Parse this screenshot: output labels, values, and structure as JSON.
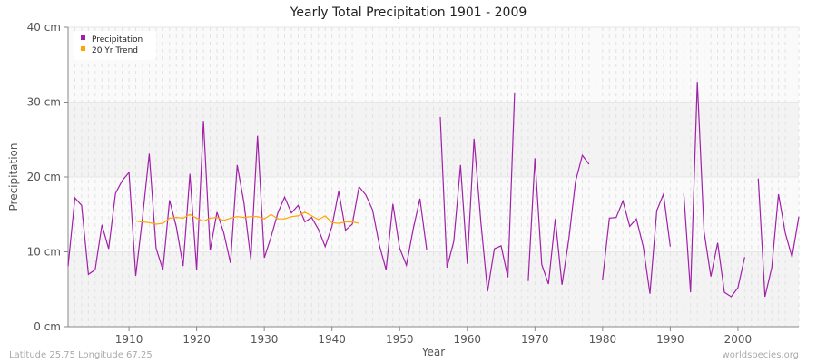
{
  "chart_data": {
    "type": "line",
    "title": "Yearly Total Precipitation 1901 - 2009",
    "xlabel": "Year",
    "ylabel": "Precipitation",
    "xlim": [
      1901,
      2009
    ],
    "ylim": [
      0,
      40
    ],
    "y_ticks": [
      "0 cm",
      "10 cm",
      "20 cm",
      "30 cm",
      "40 cm"
    ],
    "y_tick_values": [
      0,
      10,
      20,
      30,
      40
    ],
    "x_ticks": [
      "1910",
      "1920",
      "1930",
      "1940",
      "1950",
      "1960",
      "1970",
      "1980",
      "1990",
      "2000"
    ],
    "grid": true,
    "legend": "top-left",
    "colors": {
      "precipitation": "#a020a8",
      "trend": "#ffa500"
    },
    "series": [
      {
        "name": "Precipitation",
        "start_year": 1901,
        "values": [
          8.1,
          17.2,
          16.2,
          7.0,
          7.6,
          13.6,
          10.4,
          17.8,
          19.5,
          20.6,
          6.8,
          14.6,
          23.1,
          10.5,
          7.6,
          16.9,
          13.3,
          8.1,
          20.4,
          7.6,
          27.5,
          10.2,
          15.3,
          12.6,
          8.5,
          21.6,
          16.5,
          9.0,
          25.5,
          9.2,
          12.0,
          15.2,
          17.3,
          15.2,
          16.2,
          14.0,
          14.6,
          13.0,
          10.7,
          13.4,
          18.1,
          12.9,
          13.7,
          18.7,
          17.6,
          15.6,
          10.9,
          7.6,
          16.4,
          10.5,
          8.2,
          13.0,
          17.1,
          10.3,
          null,
          28.0,
          7.9,
          11.4,
          21.6,
          8.4,
          25.1,
          14.0,
          4.7,
          10.4,
          10.8,
          6.6,
          31.3,
          null,
          6.1,
          22.5,
          8.3,
          5.7,
          14.4,
          5.6,
          11.7,
          19.4,
          22.9,
          21.7,
          null,
          6.3,
          14.5,
          14.6,
          16.8,
          13.4,
          14.4,
          10.7,
          4.4,
          15.5,
          17.7,
          10.7,
          null,
          17.8,
          4.6,
          32.7,
          12.7,
          6.7,
          11.2,
          4.6,
          4.0,
          5.2,
          9.3,
          null,
          19.8,
          4.0,
          7.9,
          17.7,
          12.5,
          9.3,
          14.7
        ]
      },
      {
        "name": "20 Yr Trend",
        "start_year": 1911,
        "values": [
          14.1,
          14.0,
          13.9,
          13.7,
          13.8,
          14.5,
          14.6,
          14.5,
          15.0,
          14.5,
          14.1,
          14.5,
          14.6,
          14.2,
          14.5,
          14.7,
          14.6,
          14.7,
          14.7,
          14.4,
          15.0,
          14.4,
          14.4,
          14.7,
          14.8,
          15.3,
          14.8,
          14.3,
          14.8,
          13.9,
          13.8,
          14.0,
          14.0,
          13.8
        ]
      }
    ]
  },
  "footer": {
    "left": "Latitude 25.75 Longitude 67.25",
    "right": "worldspecies.org"
  }
}
